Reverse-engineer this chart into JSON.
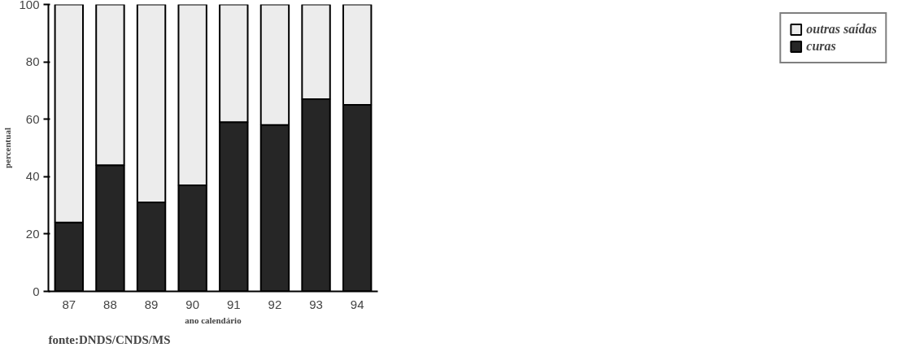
{
  "chart_data": {
    "type": "bar",
    "stacked": true,
    "xlabel": "ano calendário",
    "ylabel": "percentual",
    "categories": [
      "87",
      "88",
      "89",
      "90",
      "91",
      "92",
      "93",
      "94"
    ],
    "series": [
      {
        "name": "curas",
        "color": "#262626",
        "values": [
          24,
          44,
          31,
          37,
          59,
          58,
          67,
          65
        ]
      },
      {
        "name": "outras saídas",
        "color": "#ececec",
        "values": [
          76,
          56,
          69,
          63,
          41,
          42,
          33,
          35
        ]
      }
    ],
    "ylim": [
      0,
      100
    ],
    "yticks": [
      0,
      20,
      40,
      60,
      80,
      100
    ],
    "grid": false,
    "legend": "right",
    "annotations": [
      "fonte:DNDS/CNDS/MS"
    ]
  }
}
